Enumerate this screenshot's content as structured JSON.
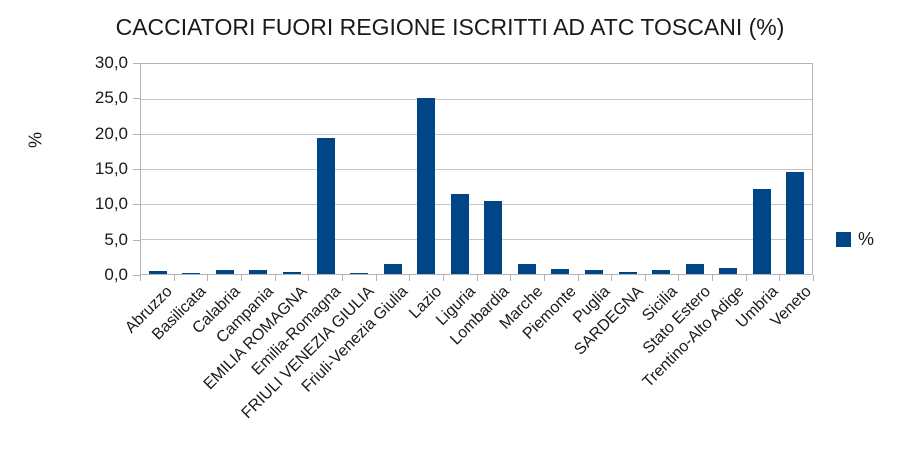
{
  "title": "CACCIATORI FUORI REGIONE ISCRITTI AD ATC TOSCANI (%)",
  "y_axis": {
    "title": "%",
    "ticks": [
      {
        "label": "30,0",
        "value": 30
      },
      {
        "label": "25,0",
        "value": 25
      },
      {
        "label": "20,0",
        "value": 20
      },
      {
        "label": "15,0",
        "value": 15
      },
      {
        "label": "10,0",
        "value": 10
      },
      {
        "label": "5,0",
        "value": 5
      },
      {
        "label": "0,0",
        "value": 0
      }
    ]
  },
  "legend": {
    "label": "%"
  },
  "colors": {
    "bar": "#004586",
    "grid": "#c6c6c6",
    "axis": "#b3b3b3",
    "text": "#1a1a1a"
  },
  "chart_data": {
    "type": "bar",
    "title": "CACCIATORI FUORI REGIONE ISCRITTI AD ATC TOSCANI (%)",
    "xlabel": "",
    "ylabel": "%",
    "ylim": [
      0,
      30
    ],
    "grid": "horizontal",
    "legend_position": "right",
    "categories": [
      "Abruzzo",
      "Basilicata",
      "Calabria",
      "Campania",
      "EMILIA ROMAGNA",
      "Emilia-Romagna",
      "FRIULI VENEZIA GIULIA",
      "Friuli-Venezia Giulia",
      "Lazio",
      "Liguria",
      "Lombardia",
      "Marche",
      "Piemonte",
      "Puglia",
      "SARDEGNA",
      "Sicilia",
      "Stato Estero",
      "Trentino-Alto Adige",
      "Umbria",
      "Veneto"
    ],
    "series": [
      {
        "name": "%",
        "values": [
          0.4,
          0.2,
          0.6,
          0.6,
          0.3,
          19.5,
          0.2,
          1.5,
          25.2,
          11.5,
          10.5,
          1.4,
          0.7,
          0.6,
          0.3,
          0.6,
          1.5,
          0.8,
          12.1,
          14.6
        ]
      }
    ]
  }
}
